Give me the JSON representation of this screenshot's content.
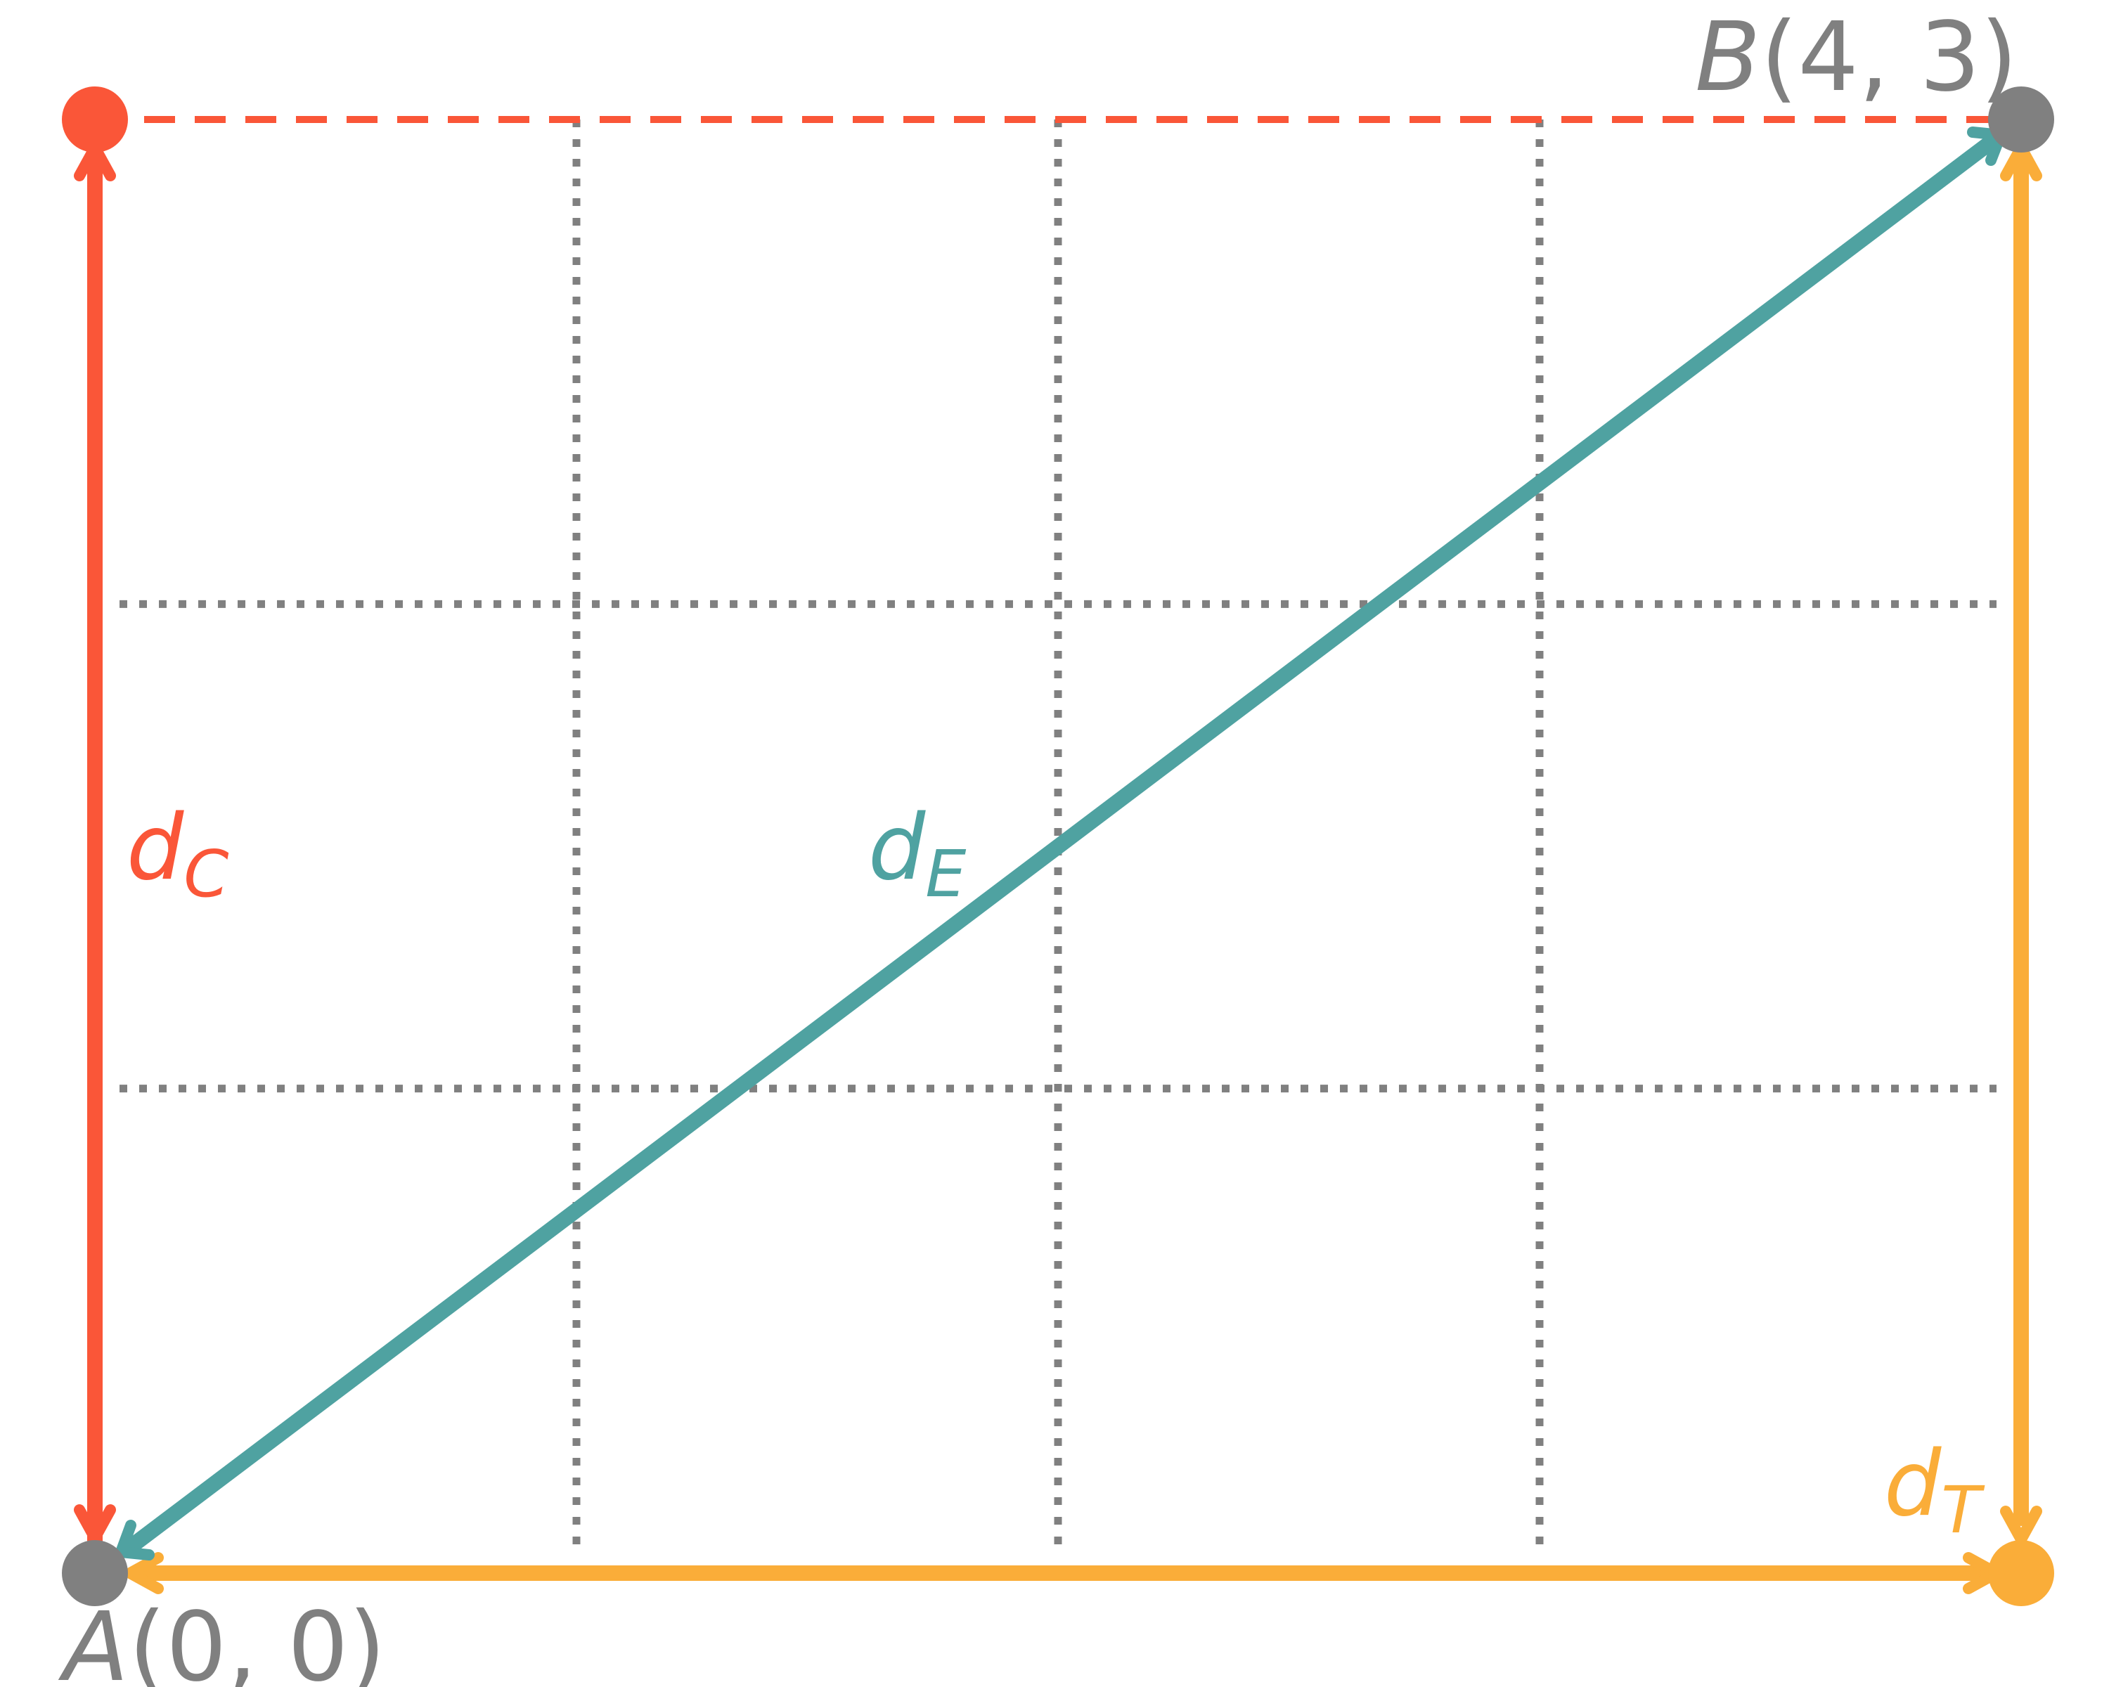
{
  "diagram": {
    "grid": {
      "columns": 4,
      "rows": 3,
      "style": "dotted",
      "color": "#808080"
    },
    "points": {
      "a": {
        "name": "A",
        "coords": "(0, 0)",
        "x": 0,
        "y": 0,
        "color": "#808080"
      },
      "b": {
        "name": "B",
        "coords": "(4, 3)",
        "x": 4,
        "y": 3,
        "color": "#808080"
      },
      "chebyshev_corner": {
        "x": 0,
        "y": 3,
        "color": "#fa5638"
      },
      "taxicab_corner": {
        "x": 4,
        "y": 0,
        "color": "#faad39"
      }
    },
    "distances": {
      "chebyshev": {
        "symbol": "d",
        "subscript": "C",
        "color": "#fa5638",
        "path": "vertical A to (0,3), dashed horizontal (0,3) to B"
      },
      "euclidean": {
        "symbol": "d",
        "subscript": "E",
        "color": "#4fa2a1",
        "path": "straight line A to B"
      },
      "taxicab": {
        "symbol": "d",
        "subscript": "T",
        "color": "#faad39",
        "path": "horizontal A to (4,0), vertical (4,0) to B"
      }
    }
  }
}
